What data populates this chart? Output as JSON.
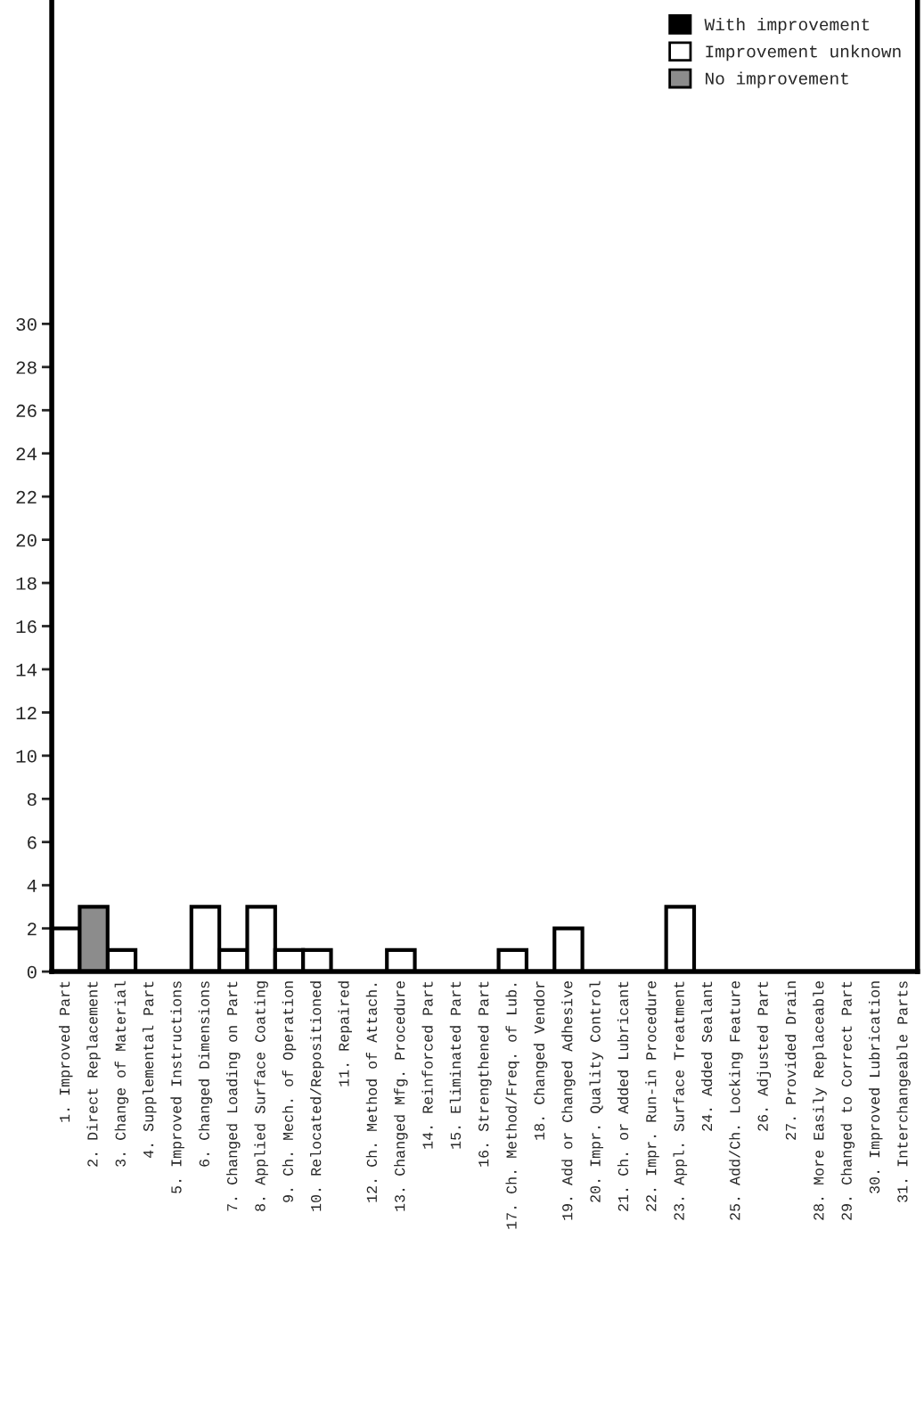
{
  "chart_data": {
    "type": "bar",
    "categories": [
      "1. Improved Part",
      "2. Direct Replacement",
      "3. Change of Material",
      "4. Supplemental Part",
      "5. Improved Instructions",
      "6. Changed Dimensions",
      "7. Changed Loading on Part",
      "8. Applied Surface Coating",
      "9. Ch. Mech. of Operation",
      "10. Relocated/Repositioned",
      "11. Repaired",
      "12. Ch. Method of Attach.",
      "13. Changed Mfg. Procedure",
      "14. Reinforced Part",
      "15. Eliminated Part",
      "16. Strengthened Part",
      "17. Ch. Method/Freq. of Lub.",
      "18. Changed Vendor",
      "19. Add or Changed Adhesive",
      "20. Impr. Quality Control",
      "21. Ch. or Added Lubricant",
      "22. Impr. Run-in Procedure",
      "23. Appl. Surface Treatment",
      "24. Added Sealant",
      "25. Add/Ch. Locking Feature",
      "26. Adjusted Part",
      "27. Provided Drain",
      "28. More Easily Replaceable",
      "29. Changed to Correct Part",
      "30. Improved Lubrication",
      "31. Interchangeable Parts"
    ],
    "series": [
      {
        "name": "With improvement",
        "color": "#000000",
        "values": [
          0,
          0,
          0,
          0,
          0,
          0,
          0,
          0,
          0,
          0,
          0,
          0,
          0,
          0,
          0,
          0,
          0,
          0,
          0,
          0,
          0,
          0,
          0,
          0,
          0,
          0,
          0,
          0,
          0,
          0,
          0
        ]
      },
      {
        "name": "Improvement unknown",
        "color": "#ffffff",
        "values": [
          2,
          0,
          1,
          0,
          0,
          3,
          1,
          3,
          1,
          1,
          0,
          0,
          1,
          0,
          0,
          0,
          1,
          0,
          2,
          0,
          0,
          0,
          3,
          0,
          0,
          0,
          0,
          0,
          0,
          0,
          0
        ]
      },
      {
        "name": "No improvement",
        "color": "#8c8c8c",
        "values": [
          0,
          3,
          0,
          0,
          0,
          0,
          0,
          0,
          0,
          0,
          0,
          0,
          0,
          0,
          0,
          0,
          0,
          0,
          0,
          0,
          0,
          0,
          0,
          0,
          0,
          0,
          0,
          0,
          0,
          0,
          0
        ]
      }
    ],
    "ylim": [
      0,
      45
    ],
    "yticks": [
      0,
      2,
      4,
      6,
      8,
      10,
      12,
      14,
      16,
      18,
      20,
      22,
      24,
      26,
      28,
      30
    ],
    "grid": false,
    "legend": "top right"
  }
}
